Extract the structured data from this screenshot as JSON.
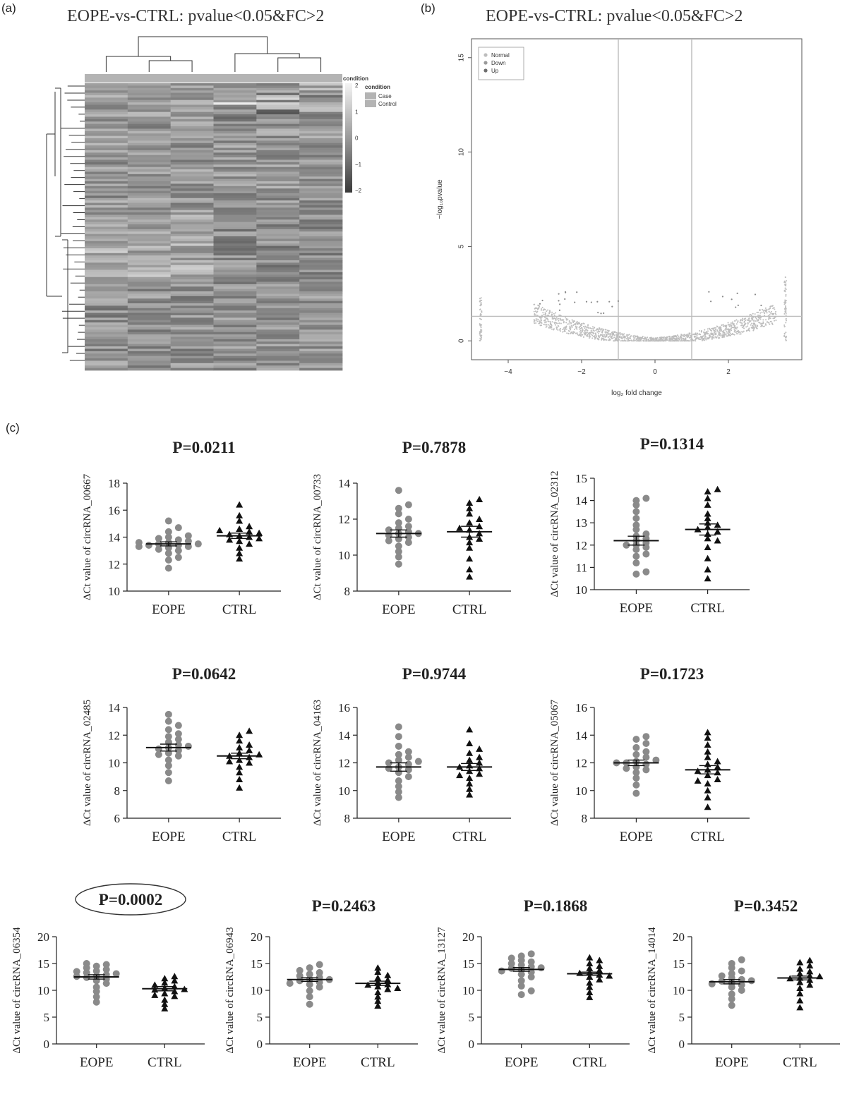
{
  "panel_labels": {
    "a": "(a)",
    "b": "(b)",
    "c": "(c)"
  },
  "chart_data": [
    {
      "type": "heatmap",
      "panel": "a",
      "title": "EOPE-vs-CTRL: pvalue<0.05&FC>2",
      "legend_title": "condition",
      "annotation_title": "condition",
      "annotation_entries": [
        "Case",
        "Control"
      ],
      "colorbar_ticks": [
        "2",
        "1",
        "0",
        "−1",
        "−2"
      ],
      "colors": {
        "low": "#3a3a3a",
        "mid": "#9a9a9a",
        "high": "#f4f4f4",
        "annotation": "#b4b4b4"
      }
    },
    {
      "type": "scatter",
      "panel": "b",
      "title": "EOPE-vs-CTRL: pvalue<0.05&FC>2",
      "xlabel": "log₂ fold change",
      "ylabel": "−log₁₀pvalue",
      "xlim": [
        -5,
        4
      ],
      "ylim": [
        -1,
        16
      ],
      "xticks": [
        -4,
        -2,
        0,
        2
      ],
      "yticks": [
        0,
        5,
        10,
        15
      ],
      "vlines": [
        -1,
        1
      ],
      "hline": 1.3,
      "legend": [
        "Normal",
        "Down",
        "Up"
      ],
      "legend_position": "top-left"
    },
    {
      "type": "scatter",
      "panel": "c",
      "subplots": [
        {
          "p": "P=0.0211",
          "ylabel": "ΔCt value of circRNA_00667",
          "ylim": [
            10,
            18
          ],
          "yticks": [
            10,
            12,
            14,
            16,
            18
          ],
          "categories": [
            "EOPE",
            "CTRL"
          ],
          "means": [
            13.5,
            14.1
          ],
          "sem": [
            0.15,
            0.2
          ],
          "eope": [
            11.7,
            12.3,
            12.5,
            12.8,
            13.0,
            13.1,
            13.2,
            13.3,
            13.4,
            13.4,
            13.5,
            13.5,
            13.6,
            13.7,
            13.8,
            13.9,
            14.0,
            14.1,
            14.4,
            14.7,
            15.2,
            13.3,
            13.6
          ],
          "ctrl": [
            12.4,
            12.8,
            13.2,
            13.5,
            13.7,
            13.8,
            14.0,
            14.1,
            14.2,
            14.3,
            14.4,
            14.6,
            14.8,
            15.2,
            15.6,
            16.4,
            13.9,
            14.5
          ]
        },
        {
          "p": "P=0.7878",
          "ylabel": "ΔCt value of circRNA_00733",
          "ylim": [
            8,
            14
          ],
          "yticks": [
            8,
            10,
            12,
            14
          ],
          "categories": [
            "EOPE",
            "CTRL"
          ],
          "means": [
            11.2,
            11.3
          ],
          "sem": [
            0.2,
            0.3
          ],
          "eope": [
            9.5,
            9.9,
            10.2,
            10.5,
            10.7,
            10.9,
            11.0,
            11.1,
            11.2,
            11.3,
            11.4,
            11.5,
            11.6,
            11.8,
            12.0,
            12.3,
            12.6,
            12.8,
            13.6,
            11.2,
            10.8
          ],
          "ctrl": [
            8.8,
            9.2,
            9.8,
            10.4,
            10.7,
            11.0,
            11.2,
            11.4,
            11.6,
            11.8,
            12.0,
            12.3,
            12.6,
            12.9,
            13.1,
            11.5,
            10.9
          ]
        },
        {
          "p": "P=0.1314",
          "ylabel": "ΔCt value of circRNA_02312",
          "ylim": [
            10,
            15
          ],
          "yticks": [
            10,
            11,
            12,
            13,
            14,
            15
          ],
          "categories": [
            "EOPE",
            "CTRL"
          ],
          "means": [
            12.2,
            12.7
          ],
          "sem": [
            0.2,
            0.25
          ],
          "eope": [
            10.7,
            10.8,
            11.2,
            11.5,
            11.8,
            11.9,
            12.0,
            12.1,
            12.2,
            12.3,
            12.4,
            12.5,
            12.7,
            12.9,
            13.2,
            13.5,
            13.8,
            14.0,
            14.1,
            12.0,
            11.6
          ],
          "ctrl": [
            10.5,
            10.9,
            11.4,
            11.9,
            12.3,
            12.5,
            12.6,
            12.8,
            12.9,
            13.0,
            13.2,
            13.4,
            13.8,
            14.1,
            14.4,
            14.5,
            12.7,
            12.2
          ]
        },
        {
          "p": "P=0.0642",
          "ylabel": "ΔCt value of circRNA_02485",
          "ylim": [
            6,
            14
          ],
          "yticks": [
            6,
            8,
            10,
            12,
            14
          ],
          "categories": [
            "EOPE",
            "CTRL"
          ],
          "means": [
            11.1,
            10.5
          ],
          "sem": [
            0.25,
            0.2
          ],
          "eope": [
            8.7,
            9.3,
            9.8,
            10.2,
            10.5,
            10.7,
            10.9,
            11.0,
            11.1,
            11.3,
            11.5,
            11.7,
            11.9,
            12.1,
            12.4,
            12.7,
            13.0,
            13.5,
            11.2,
            10.6
          ],
          "ctrl": [
            8.2,
            8.8,
            9.3,
            9.7,
            10.0,
            10.2,
            10.4,
            10.5,
            10.7,
            10.9,
            11.1,
            11.3,
            11.6,
            12.0,
            12.3,
            10.6,
            10.1
          ]
        },
        {
          "p": "P=0.9744",
          "ylabel": "ΔCt value of circRNA_04163",
          "ylim": [
            8,
            16
          ],
          "yticks": [
            8,
            10,
            12,
            14,
            16
          ],
          "categories": [
            "EOPE",
            "CTRL"
          ],
          "means": [
            11.7,
            11.7
          ],
          "sem": [
            0.3,
            0.25
          ],
          "eope": [
            9.5,
            9.9,
            10.3,
            10.7,
            11.0,
            11.3,
            11.5,
            11.7,
            11.9,
            12.0,
            12.2,
            12.4,
            12.6,
            12.8,
            13.2,
            13.9,
            14.6,
            11.6,
            12.1
          ],
          "ctrl": [
            9.7,
            10.1,
            10.5,
            10.9,
            11.2,
            11.4,
            11.6,
            11.8,
            12.0,
            12.2,
            12.4,
            12.7,
            13.0,
            13.4,
            14.4,
            11.7,
            11.1
          ]
        },
        {
          "p": "P=0.1723",
          "ylabel": "ΔCt value of circRNA_05067",
          "ylim": [
            8,
            16
          ],
          "yticks": [
            8,
            10,
            12,
            14,
            16
          ],
          "categories": [
            "EOPE",
            "CTRL"
          ],
          "means": [
            12.0,
            11.5
          ],
          "sem": [
            0.2,
            0.3
          ],
          "eope": [
            9.8,
            10.4,
            10.9,
            11.3,
            11.5,
            11.7,
            11.9,
            12.0,
            12.1,
            12.2,
            12.4,
            12.6,
            12.8,
            13.1,
            13.4,
            13.7,
            13.9,
            12.0,
            11.6
          ],
          "ctrl": [
            8.8,
            9.5,
            10.0,
            10.5,
            10.8,
            11.1,
            11.3,
            11.5,
            11.7,
            11.9,
            12.1,
            12.4,
            12.8,
            13.3,
            13.8,
            14.2,
            11.4,
            10.7
          ]
        },
        {
          "p": "P=0.0002",
          "highlight": true,
          "ylabel": "ΔCt value of circRNA_06354",
          "ylim": [
            0,
            20
          ],
          "yticks": [
            0,
            5,
            10,
            15,
            20
          ],
          "categories": [
            "EOPE",
            "CTRL"
          ],
          "means": [
            12.5,
            10.3
          ],
          "sem": [
            0.4,
            0.4
          ],
          "eope": [
            7.8,
            8.8,
            9.8,
            10.6,
            11.3,
            11.8,
            12.1,
            12.4,
            12.7,
            12.9,
            13.1,
            13.3,
            13.6,
            13.9,
            14.2,
            14.5,
            14.8,
            15.0,
            12.6,
            13.5
          ],
          "ctrl": [
            6.6,
            7.4,
            8.2,
            8.9,
            9.4,
            9.8,
            10.1,
            10.4,
            10.7,
            11.0,
            11.4,
            11.8,
            12.2,
            12.6,
            10.2,
            9.1
          ]
        },
        {
          "p": "P=0.2463",
          "ylabel": "ΔCt value of circRNA_06943",
          "ylim": [
            0,
            20
          ],
          "yticks": [
            0,
            5,
            10,
            15,
            20
          ],
          "categories": [
            "EOPE",
            "CTRL"
          ],
          "means": [
            12.0,
            11.3
          ],
          "sem": [
            0.35,
            0.4
          ],
          "eope": [
            7.4,
            8.8,
            9.9,
            10.6,
            11.1,
            11.5,
            11.8,
            12.1,
            12.4,
            12.7,
            13.0,
            13.3,
            13.7,
            14.2,
            14.8,
            12.0,
            11.3
          ],
          "ctrl": [
            7.1,
            8.0,
            8.8,
            9.6,
            10.2,
            10.7,
            11.1,
            11.5,
            11.9,
            12.3,
            12.8,
            13.4,
            14.2,
            11.0,
            10.4
          ]
        },
        {
          "p": "P=0.1868",
          "ylabel": "ΔCt value of circRNA_13127",
          "ylim": [
            0,
            20
          ],
          "yticks": [
            0,
            5,
            10,
            15,
            20
          ],
          "categories": [
            "EOPE",
            "CTRL"
          ],
          "means": [
            13.9,
            13.1
          ],
          "sem": [
            0.35,
            0.3
          ],
          "eope": [
            9.2,
            9.9,
            10.8,
            11.8,
            12.5,
            13.0,
            13.4,
            13.8,
            14.1,
            14.4,
            14.7,
            15.0,
            15.3,
            15.6,
            16.0,
            16.4,
            16.8,
            14.2,
            13.6
          ],
          "ctrl": [
            8.7,
            9.6,
            10.6,
            11.4,
            12.0,
            12.5,
            12.9,
            13.3,
            13.7,
            14.1,
            14.5,
            15.0,
            15.6,
            16.1,
            13.2,
            12.7
          ]
        },
        {
          "p": "P=0.3452",
          "ylabel": "ΔCt value of circRNA_14014",
          "ylim": [
            0,
            20
          ],
          "yticks": [
            0,
            5,
            10,
            15,
            20
          ],
          "categories": [
            "EOPE",
            "CTRL"
          ],
          "means": [
            11.6,
            12.3
          ],
          "sem": [
            0.4,
            0.35
          ],
          "eope": [
            7.2,
            8.4,
            9.3,
            10.0,
            10.6,
            11.0,
            11.4,
            11.7,
            12.0,
            12.3,
            12.7,
            13.1,
            13.6,
            14.2,
            15.0,
            15.7,
            11.8,
            11.2
          ],
          "ctrl": [
            6.8,
            8.1,
            9.4,
            10.4,
            11.0,
            11.5,
            11.9,
            12.3,
            12.7,
            13.1,
            13.5,
            14.0,
            14.6,
            15.2,
            15.6,
            12.2,
            12.6
          ]
        }
      ]
    }
  ]
}
